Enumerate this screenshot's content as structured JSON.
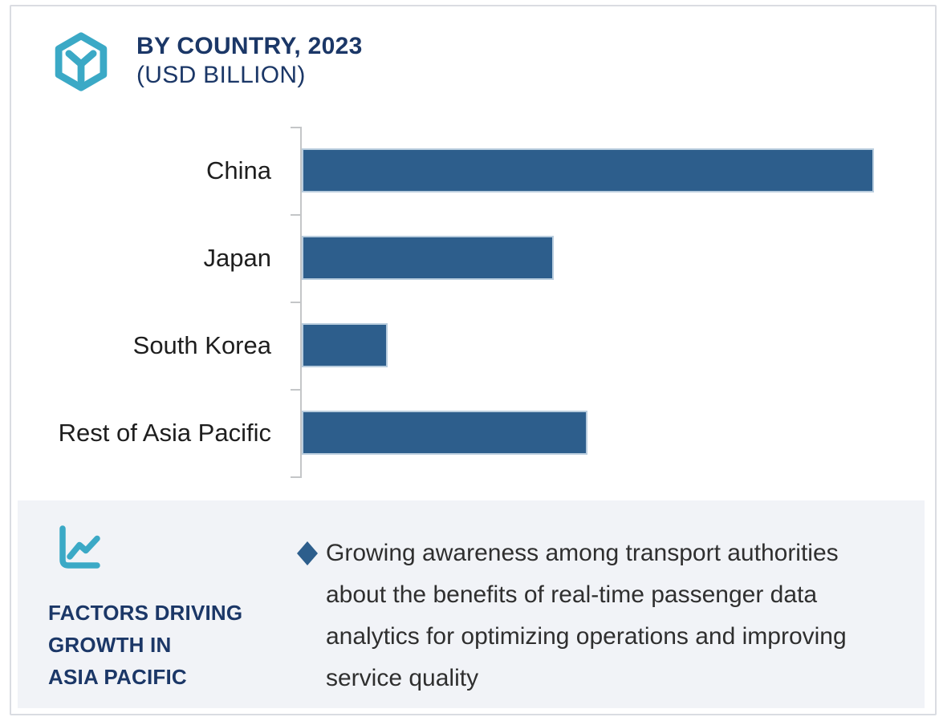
{
  "header": {
    "title_line1": "BY COUNTRY, 2023",
    "title_line2": "(USD BILLION)"
  },
  "chart_data": {
    "type": "bar",
    "orientation": "horizontal",
    "title": "BY COUNTRY, 2023 (USD BILLION)",
    "unit": "USD Billion",
    "categories": [
      "China",
      "Japan",
      "South Korea",
      "Rest of Asia Pacific"
    ],
    "values": [
      100,
      44,
      15,
      50
    ],
    "values_note": "numeric axis not labeled in figure; values are relative estimates with China = 100",
    "xlim": [
      0,
      109
    ],
    "grid": false,
    "value_labels_visible": false,
    "bar_color": "#2d5e8c",
    "legend": "none"
  },
  "factors": {
    "heading_lines": [
      "FACTORS DRIVING",
      "GROWTH IN",
      "ASIA PACIFIC"
    ],
    "bullets": [
      "Growing awareness among transport authorities about the benefits of real-time passenger data analytics for optimizing operations and improving service quality"
    ]
  },
  "icons": {
    "brand": "hexagon-cube-icon",
    "factors": "line-chart-icon",
    "bullet": "diamond-bullet-icon"
  },
  "colors": {
    "navy": "#1b3767",
    "bar_blue": "#2d5e8c",
    "teal": "#3ba9c6",
    "panel_bg": "#f1f3f7",
    "axis_gray": "#c4c6c8",
    "text_dark": "#2f2f2f",
    "card_border": "#dadce2"
  }
}
